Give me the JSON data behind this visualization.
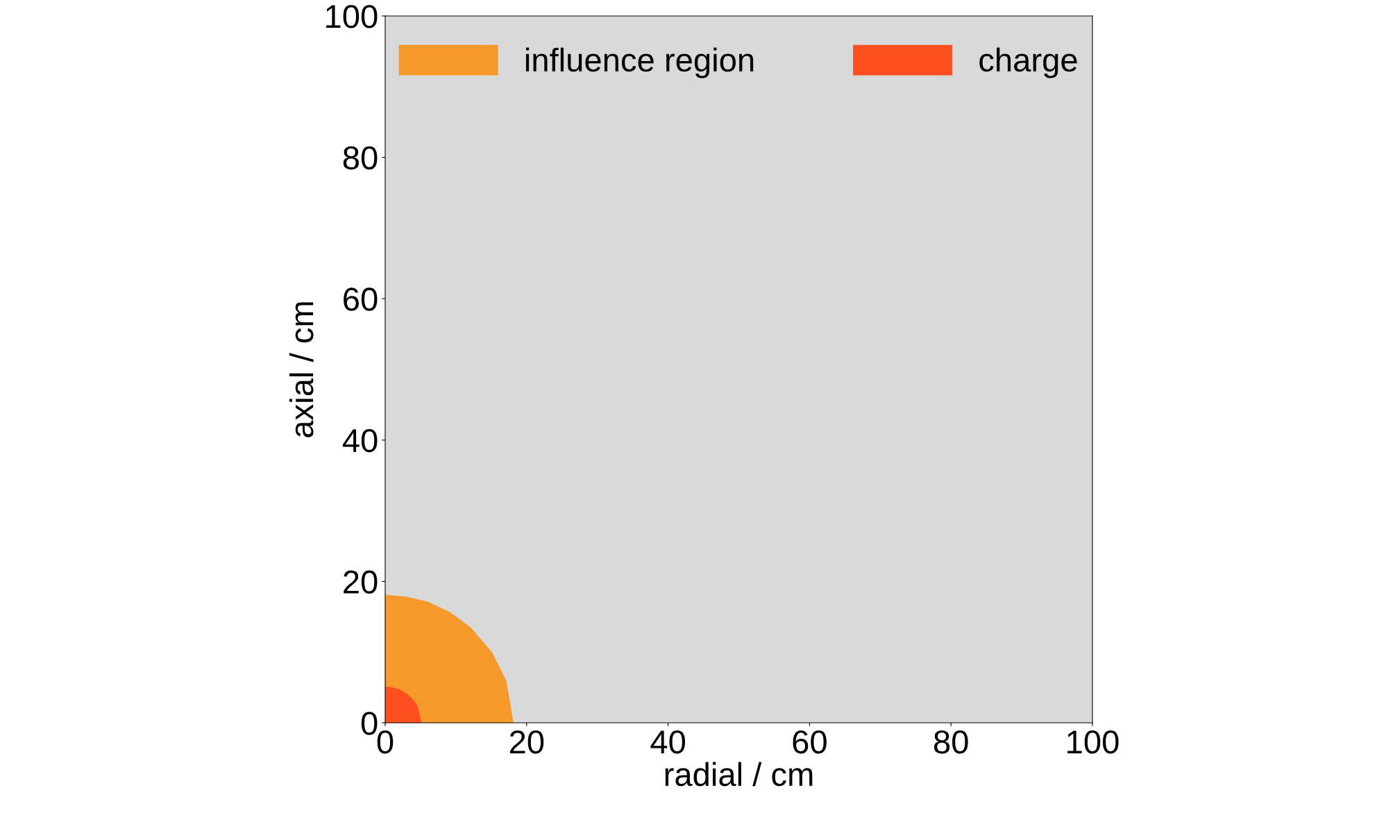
{
  "chart_data": {
    "type": "area",
    "xlabel": "radial / cm",
    "ylabel": "axial / cm",
    "series": [
      {
        "name": "influence region",
        "color": "#f59a2a",
        "x": [
          0,
          3,
          6,
          9,
          12,
          15,
          17,
          18
        ],
        "values": [
          18,
          17.7,
          17,
          15.6,
          13.4,
          9.9,
          5.9,
          0
        ]
      },
      {
        "name": "charge",
        "color": "#ff4f1f",
        "x": [
          0,
          1,
          2,
          3,
          4,
          4.5,
          5
        ],
        "values": [
          5,
          4.9,
          4.6,
          4,
          3,
          2.2,
          0
        ]
      }
    ],
    "xlim": [
      0,
      100
    ],
    "ylim": [
      0,
      100
    ],
    "xticks": [
      0,
      20,
      40,
      60,
      80,
      100
    ],
    "yticks": [
      0,
      20,
      40,
      60,
      80,
      100
    ],
    "grid": false,
    "legend": "top"
  }
}
